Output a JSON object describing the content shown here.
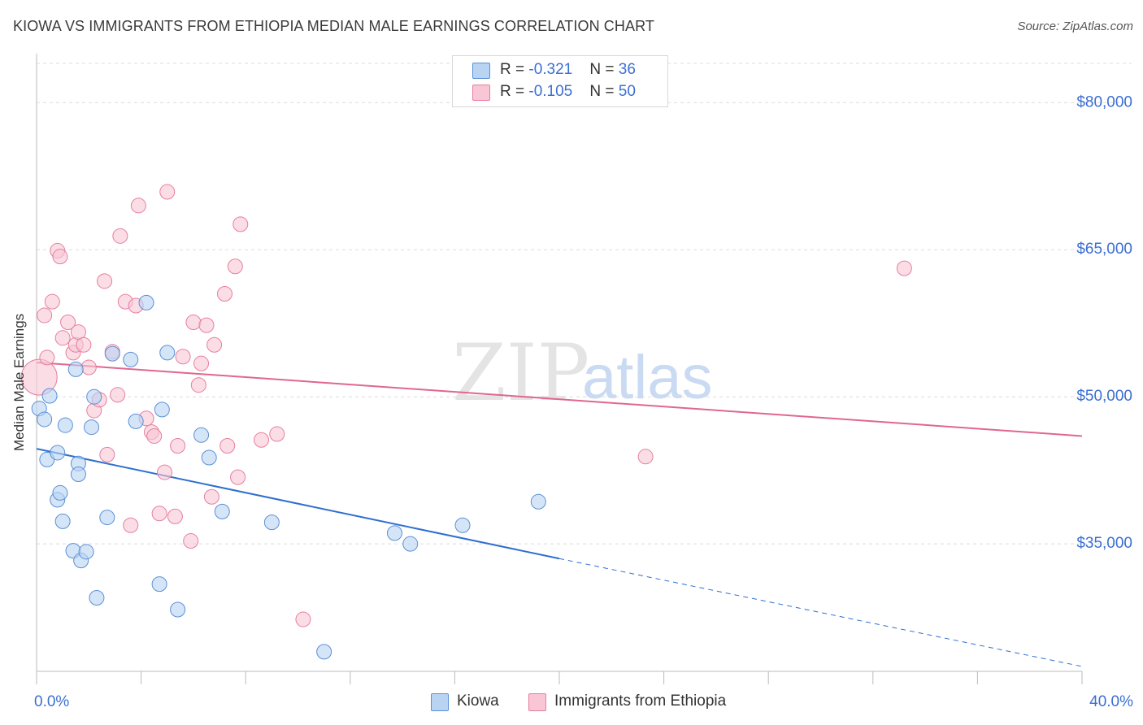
{
  "title": "KIOWA VS IMMIGRANTS FROM ETHIOPIA MEDIAN MALE EARNINGS CORRELATION CHART",
  "source": "Source: ZipAtlas.com",
  "watermark": {
    "zip": "ZIP",
    "atlas": "atlas"
  },
  "colors": {
    "kiowa_fill": "#b9d3f3",
    "kiowa_stroke": "#5b8fd6",
    "kiowa_line": "#2f6fd0",
    "ethiopia_fill": "#f8c6d5",
    "ethiopia_stroke": "#e67fa0",
    "ethiopia_line": "#e0678f",
    "axis_text": "#3b6fd4",
    "grid": "#dcdcdc"
  },
  "legend_top": [
    {
      "r_label": "R = ",
      "r_value": "-0.321",
      "n_label": "N = ",
      "n_value": "36"
    },
    {
      "r_label": "R = ",
      "r_value": "-0.105",
      "n_label": "N = ",
      "n_value": "50"
    }
  ],
  "legend_bottom": [
    "Kiowa",
    "Immigrants from Ethiopia"
  ],
  "chart_data": {
    "type": "scatter",
    "xlabel": "",
    "ylabel": "Median Male Earnings",
    "xlim": [
      0,
      40
    ],
    "ylim": [
      22000,
      84000
    ],
    "x_tick_labels": [
      "0.0%",
      "40.0%"
    ],
    "y_ticks": [
      35000,
      50000,
      65000,
      80000
    ],
    "y_tick_labels": [
      "$35,000",
      "$50,000",
      "$65,000",
      "$80,000"
    ],
    "grid": true,
    "legend_position": "top-center",
    "series": [
      {
        "name": "Kiowa",
        "r": -0.321,
        "n": 36,
        "points": [
          [
            0.1,
            48800
          ],
          [
            0.3,
            47700
          ],
          [
            0.4,
            43600
          ],
          [
            0.5,
            50100
          ],
          [
            0.8,
            39500
          ],
          [
            0.8,
            44300
          ],
          [
            0.9,
            40200
          ],
          [
            1.0,
            37300
          ],
          [
            1.1,
            47100
          ],
          [
            1.4,
            34300
          ],
          [
            1.5,
            52800
          ],
          [
            1.6,
            43200
          ],
          [
            1.6,
            42100
          ],
          [
            1.7,
            33300
          ],
          [
            1.9,
            34200
          ],
          [
            2.1,
            46900
          ],
          [
            2.2,
            50000
          ],
          [
            2.3,
            29500
          ],
          [
            2.7,
            37700
          ],
          [
            2.9,
            54400
          ],
          [
            3.6,
            53800
          ],
          [
            3.8,
            47500
          ],
          [
            4.2,
            59600
          ],
          [
            4.7,
            30900
          ],
          [
            4.8,
            48700
          ],
          [
            5.0,
            54500
          ],
          [
            5.4,
            28300
          ],
          [
            6.3,
            46100
          ],
          [
            6.6,
            43800
          ],
          [
            7.1,
            38300
          ],
          [
            9.0,
            37200
          ],
          [
            11.0,
            24000
          ],
          [
            13.7,
            36100
          ],
          [
            14.3,
            35000
          ],
          [
            16.3,
            36900
          ],
          [
            19.2,
            39300
          ]
        ],
        "trend": {
          "x0": 0,
          "y0": 44700,
          "x1": 20,
          "y1": 33500,
          "dash_to_x": 40,
          "dash_to_y": 22500
        }
      },
      {
        "name": "Immigrants from Ethiopia",
        "r": -0.105,
        "n": 50,
        "points": [
          [
            0.1,
            52000
          ],
          [
            0.3,
            58300
          ],
          [
            0.4,
            54000
          ],
          [
            0.6,
            59700
          ],
          [
            0.8,
            64900
          ],
          [
            0.9,
            64300
          ],
          [
            1.0,
            56000
          ],
          [
            1.2,
            57600
          ],
          [
            1.4,
            54500
          ],
          [
            1.5,
            55300
          ],
          [
            1.6,
            56600
          ],
          [
            1.8,
            55300
          ],
          [
            2.0,
            53000
          ],
          [
            2.2,
            48600
          ],
          [
            2.4,
            49700
          ],
          [
            2.6,
            61800
          ],
          [
            2.7,
            44100
          ],
          [
            2.9,
            54600
          ],
          [
            3.1,
            50200
          ],
          [
            3.2,
            66400
          ],
          [
            3.4,
            59700
          ],
          [
            3.6,
            36900
          ],
          [
            3.8,
            59300
          ],
          [
            3.9,
            69500
          ],
          [
            4.2,
            47800
          ],
          [
            4.4,
            46400
          ],
          [
            4.5,
            46000
          ],
          [
            4.7,
            38100
          ],
          [
            4.9,
            42300
          ],
          [
            5.0,
            70900
          ],
          [
            5.3,
            37800
          ],
          [
            5.4,
            45000
          ],
          [
            5.6,
            54100
          ],
          [
            5.9,
            35300
          ],
          [
            6.0,
            57600
          ],
          [
            6.2,
            51200
          ],
          [
            6.3,
            53400
          ],
          [
            6.5,
            57300
          ],
          [
            6.7,
            39800
          ],
          [
            6.8,
            55300
          ],
          [
            7.2,
            60500
          ],
          [
            7.3,
            45000
          ],
          [
            7.6,
            63300
          ],
          [
            7.7,
            41800
          ],
          [
            7.8,
            67600
          ],
          [
            8.6,
            45600
          ],
          [
            9.2,
            46200
          ],
          [
            10.2,
            27300
          ],
          [
            23.3,
            43900
          ],
          [
            33.2,
            63100
          ]
        ],
        "trend": {
          "x0": 0,
          "y0": 53500,
          "x1": 40,
          "y1": 46000
        }
      }
    ]
  }
}
